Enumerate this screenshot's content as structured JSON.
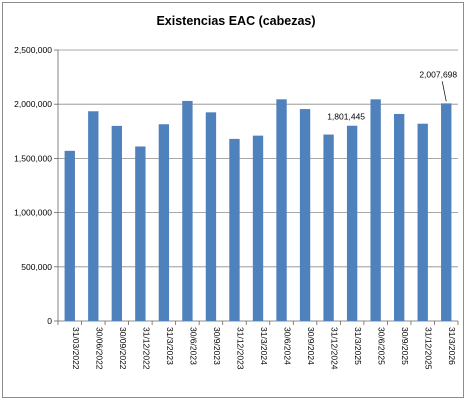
{
  "chart_data": {
    "type": "bar",
    "title": "Existencias EAC (cabezas)",
    "xlabel": "",
    "ylabel": "",
    "ylim": [
      0,
      2500000
    ],
    "yticks": [
      0,
      500000,
      1000000,
      1500000,
      2000000,
      2500000
    ],
    "ytick_labels": [
      "0",
      "500,000",
      "1,000,000",
      "1,500,000",
      "2,000,000",
      "2,500,000"
    ],
    "grid": true,
    "legend": "none",
    "bar_color": "#4f81bd",
    "categories": [
      "31/03/2022",
      "30/06/2022",
      "30/09/2022",
      "31/12/2022",
      "31/3/2023",
      "30/6/2023",
      "30/9/2023",
      "31/12/2023",
      "31/3/2024",
      "30/6/2024",
      "30/9/2024",
      "31/12/2024",
      "31/3/2025",
      "30/6/2025",
      "30/9/2025",
      "31/12/2025",
      "31/3/2026"
    ],
    "values": [
      1570000,
      1935000,
      1800000,
      1610000,
      1815000,
      2030000,
      1925000,
      1680000,
      1710000,
      2045000,
      1955000,
      1720000,
      1801445,
      2045000,
      1910000,
      1820000,
      2007698
    ],
    "data_labels": [
      {
        "index": 12,
        "text": "1,801,445"
      },
      {
        "index": 16,
        "text": "2,007,698"
      }
    ]
  }
}
